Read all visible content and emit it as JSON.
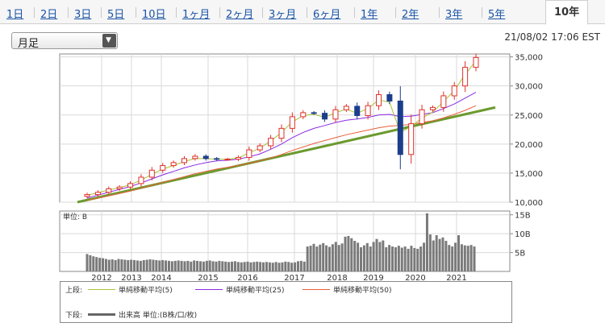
{
  "tabs": [
    {
      "label": "1日",
      "active": false
    },
    {
      "label": "2日",
      "active": false
    },
    {
      "label": "3日",
      "active": false
    },
    {
      "label": "5日",
      "active": false
    },
    {
      "label": "10日",
      "active": false
    },
    {
      "label": "1ヶ月",
      "active": false
    },
    {
      "label": "2ヶ月",
      "active": false
    },
    {
      "label": "3ヶ月",
      "active": false
    },
    {
      "label": "6ヶ月",
      "active": false
    },
    {
      "label": "1年",
      "active": false
    },
    {
      "label": "2年",
      "active": false
    },
    {
      "label": "3年",
      "active": false
    },
    {
      "label": "5年",
      "active": false
    },
    {
      "label": "10年",
      "active": true
    }
  ],
  "period_select": {
    "value": "月足",
    "arrow_icon": "triangle-down-icon"
  },
  "timestamp": "21/08/02 17:06 EST",
  "colors": {
    "candle_up": "#e0302a",
    "candle_down": "#1c3d8c",
    "ma5": "#a8c43a",
    "ma25": "#8a2be2",
    "ma50": "#e8603a",
    "trendline": "#6b9a2e",
    "volume": "#7a7a7a",
    "grid": "#d9d9d9"
  },
  "chart_data": [
    {
      "type": "line",
      "subtype": "monthly-candlestick with moving averages",
      "x_tick_labels": [
        "2012",
        "2013",
        "2014",
        "2015",
        "2016",
        "2017",
        "2018",
        "2019",
        "2020",
        "2021"
      ],
      "y_tick_labels": [
        "35,000",
        "30,000",
        "25,000",
        "20,000",
        "15,000",
        "10,000"
      ],
      "ylim": [
        10000,
        35500
      ],
      "grid": true,
      "series": [
        {
          "key": "close",
          "values": [
            11300,
            11700,
            12300,
            12600,
            13200,
            14300,
            15500,
            16300,
            16800,
            17500,
            17900,
            17500,
            17400,
            17400,
            17700,
            19000,
            19700,
            21000,
            22700,
            24700,
            25400,
            25300,
            24300,
            25900,
            26500,
            24900,
            26600,
            28500,
            27400,
            18200,
            23500,
            25900,
            26300,
            28300,
            30000,
            33200,
            34900
          ]
        },
        {
          "key": "ma5",
          "values": [
            11200,
            11600,
            12100,
            12500,
            13000,
            13800,
            14800,
            15700,
            16300,
            17000,
            17500,
            17500,
            17400,
            17400,
            17600,
            18500,
            19300,
            20500,
            22000,
            23800,
            24900,
            25100,
            24600,
            25400,
            26000,
            25300,
            26100,
            27600,
            27200,
            22000,
            23000,
            24500,
            25500,
            27300,
            29200,
            32000,
            34300
          ]
        },
        {
          "key": "ma25",
          "values": [
            10700,
            11200,
            11700,
            12200,
            12700,
            13300,
            14000,
            14700,
            15300,
            15900,
            16400,
            16800,
            17100,
            17200,
            17400,
            17800,
            18300,
            19100,
            20000,
            21100,
            22000,
            22700,
            23200,
            23700,
            24100,
            24300,
            24600,
            25000,
            25100,
            24700,
            24800,
            25100,
            25400,
            26100,
            26900,
            27900,
            28900
          ]
        },
        {
          "key": "ma50",
          "values": [
            10300,
            10700,
            11100,
            11500,
            11900,
            12400,
            12900,
            13400,
            13900,
            14400,
            14900,
            15300,
            15700,
            16000,
            16300,
            16700,
            17100,
            17600,
            18200,
            18900,
            19500,
            20100,
            20600,
            21100,
            21600,
            22000,
            22400,
            22800,
            23100,
            23200,
            23400,
            23700,
            24000,
            24500,
            25100,
            25800,
            26600
          ]
        },
        {
          "key": "trendline",
          "values": [
            10000,
            26300
          ]
        }
      ]
    },
    {
      "type": "bar",
      "name": "volume",
      "unit_label": "単位: B",
      "y_tick_labels": [
        "15B",
        "10B",
        "5B"
      ],
      "ylim": [
        0,
        16
      ],
      "grid": true,
      "values": [
        4.6,
        4.3,
        4.0,
        3.8,
        3.6,
        3.5,
        3.3,
        3.1,
        3.2,
        3.0,
        3.3,
        3.2,
        3.1,
        3.0,
        3.1,
        3.0,
        2.9,
        2.8,
        3.0,
        3.1,
        3.2,
        3.1,
        3.0,
        2.9,
        3.0,
        2.9,
        2.8,
        2.7,
        2.8,
        2.9,
        2.8,
        2.7,
        2.8,
        2.6,
        2.9,
        2.8,
        2.7,
        2.6,
        2.8,
        2.9,
        2.7,
        2.6,
        2.8,
        2.7,
        2.6,
        2.5,
        2.6,
        2.7,
        2.5,
        2.4,
        2.5,
        2.6,
        2.4,
        2.5,
        2.6,
        2.5,
        2.4,
        2.5,
        2.4,
        2.3,
        2.5,
        2.3,
        2.4,
        2.6,
        2.5,
        2.3,
        2.4,
        2.7,
        2.8,
        2.6,
        6.6,
        6.8,
        7.3,
        6.6,
        7.1,
        7.5,
        6.9,
        6.5,
        7.2,
        7.8,
        7.0,
        7.4,
        9.2,
        9.4,
        8.8,
        8.1,
        7.6,
        6.4,
        6.9,
        7.5,
        6.6,
        7.8,
        8.6,
        7.8,
        8.2,
        6.4,
        7.0,
        6.6,
        6.4,
        6.8,
        6.3,
        6.6,
        6.0,
        6.8,
        6.2,
        6.0,
        6.6,
        7.6,
        15.4,
        9.8,
        8.2,
        9.6,
        8.6,
        9.0,
        8.1,
        7.0,
        6.6,
        7.6,
        9.6,
        7.2,
        6.9,
        6.8,
        7.0,
        6.6
      ]
    }
  ],
  "legend": {
    "upper_label": "上段:",
    "lower_label": "下段:",
    "items": [
      {
        "name": "単純移動平均(5)"
      },
      {
        "name": "単純移動平均(25)"
      },
      {
        "name": "単純移動平均(50)"
      }
    ],
    "volume_item": "出来高 単位:(B株/口/枚)"
  }
}
